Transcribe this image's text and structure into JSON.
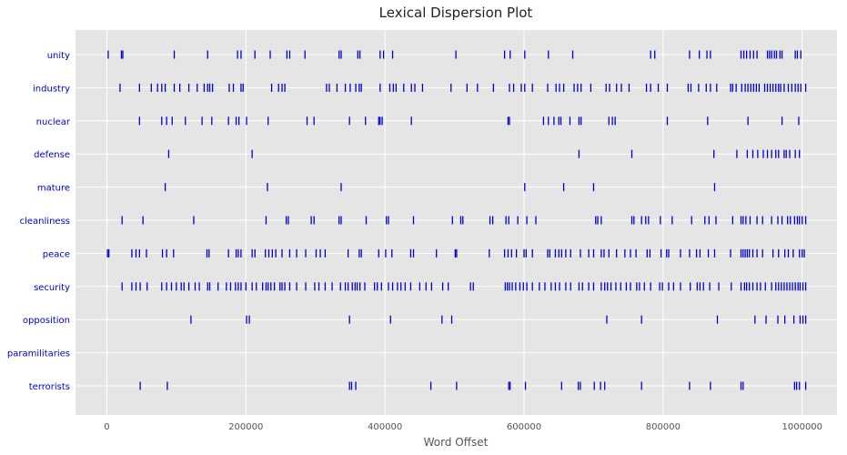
{
  "chart_data": {
    "type": "scatter",
    "title": "Lexical Dispersion Plot",
    "xlabel": "Word Offset",
    "ylabel": "",
    "xlim": [
      -45000,
      1050000
    ],
    "xticks": [
      0,
      200000,
      400000,
      600000,
      800000,
      1000000
    ],
    "grid": true,
    "colors": {
      "background": "#e5e5e5",
      "grid": "#ffffff",
      "marker": "#0000cc",
      "label": "#0000cc"
    },
    "categories": [
      "unity",
      "industry",
      "nuclear",
      "defense",
      "mature",
      "cleanliness",
      "peace",
      "security",
      "opposition",
      "paramilitaries",
      "terrorists"
    ],
    "series": [
      {
        "name": "unity",
        "x": [
          2000,
          21000,
          23000,
          97000,
          145000,
          188000,
          193000,
          213000,
          235000,
          259000,
          263000,
          285000,
          334000,
          337000,
          361000,
          364000,
          393000,
          398000,
          411000,
          502000,
          572000,
          580000,
          601000,
          635000,
          670000,
          782000,
          788000,
          838000,
          852000,
          863000,
          868000,
          912000,
          916000,
          920000,
          925000,
          930000,
          935000,
          950000,
          953000,
          956000,
          960000,
          963000,
          968000,
          971000,
          990000,
          993000,
          998000
        ]
      },
      {
        "name": "industry",
        "x": [
          19000,
          47000,
          64000,
          73000,
          79000,
          84000,
          97000,
          105000,
          118000,
          130000,
          140000,
          145000,
          148000,
          152000,
          176000,
          182000,
          193000,
          196000,
          237000,
          247000,
          252000,
          256000,
          316000,
          320000,
          331000,
          343000,
          350000,
          358000,
          363000,
          366000,
          393000,
          407000,
          412000,
          416000,
          427000,
          438000,
          443000,
          454000,
          495000,
          518000,
          533000,
          556000,
          579000,
          585000,
          596000,
          601000,
          612000,
          634000,
          646000,
          651000,
          657000,
          672000,
          677000,
          682000,
          696000,
          718000,
          723000,
          733000,
          740000,
          751000,
          776000,
          782000,
          793000,
          806000,
          836000,
          840000,
          851000,
          862000,
          868000,
          877000,
          897000,
          900000,
          905000,
          913000,
          918000,
          922000,
          926000,
          930000,
          934000,
          938000,
          946000,
          950000,
          954000,
          958000,
          962000,
          966000,
          969000,
          974000,
          980000,
          985000,
          990000,
          994000,
          998000,
          1005000
        ]
      },
      {
        "name": "nuclear",
        "x": [
          47000,
          79000,
          86000,
          94000,
          113000,
          137000,
          151000,
          175000,
          186000,
          190000,
          201000,
          232000,
          288000,
          298000,
          349000,
          372000,
          391000,
          393000,
          396000,
          438000,
          577000,
          579000,
          628000,
          635000,
          643000,
          650000,
          653000,
          666000,
          679000,
          682000,
          722000,
          727000,
          731000,
          806000,
          864000,
          922000,
          971000,
          995000
        ]
      },
      {
        "name": "defense",
        "x": [
          89000,
          209000,
          679000,
          755000,
          873000,
          906000,
          921000,
          929000,
          936000,
          944000,
          950000,
          956000,
          962000,
          966000,
          974000,
          977000,
          982000,
          990000,
          996000
        ]
      },
      {
        "name": "mature",
        "x": [
          84000,
          231000,
          337000,
          601000,
          657000,
          700000,
          874000
        ]
      },
      {
        "name": "cleanliness",
        "x": [
          22000,
          52000,
          125000,
          229000,
          258000,
          261000,
          294000,
          298000,
          334000,
          337000,
          373000,
          402000,
          405000,
          441000,
          497000,
          509000,
          512000,
          551000,
          555000,
          574000,
          578000,
          591000,
          604000,
          617000,
          703000,
          706000,
          711000,
          755000,
          758000,
          769000,
          775000,
          779000,
          796000,
          813000,
          841000,
          860000,
          866000,
          876000,
          900000,
          912000,
          915000,
          919000,
          925000,
          935000,
          943000,
          956000,
          965000,
          971000,
          979000,
          983000,
          989000,
          993000,
          996000,
          1000000,
          1005000
        ]
      },
      {
        "name": "peace",
        "x": [
          1000,
          3000,
          36000,
          42000,
          47000,
          57000,
          80000,
          86000,
          96000,
          144000,
          147000,
          175000,
          186000,
          189000,
          193000,
          209000,
          213000,
          228000,
          233000,
          238000,
          243000,
          252000,
          263000,
          273000,
          286000,
          301000,
          307000,
          314000,
          347000,
          363000,
          366000,
          391000,
          401000,
          410000,
          437000,
          441000,
          474000,
          501000,
          503000,
          550000,
          572000,
          577000,
          582000,
          589000,
          600000,
          603000,
          612000,
          634000,
          637000,
          645000,
          650000,
          654000,
          660000,
          667000,
          681000,
          693000,
          700000,
          711000,
          715000,
          722000,
          733000,
          745000,
          753000,
          761000,
          777000,
          781000,
          797000,
          805000,
          808000,
          825000,
          838000,
          848000,
          853000,
          865000,
          874000,
          897000,
          912000,
          915000,
          918000,
          921000,
          924000,
          929000,
          935000,
          943000,
          958000,
          966000,
          975000,
          980000,
          987000,
          996000,
          1000000,
          1003000
        ]
      },
      {
        "name": "security",
        "x": [
          22000,
          36000,
          42000,
          48000,
          58000,
          79000,
          86000,
          93000,
          100000,
          107000,
          111000,
          118000,
          127000,
          133000,
          145000,
          148000,
          160000,
          172000,
          178000,
          185000,
          189000,
          193000,
          200000,
          209000,
          215000,
          224000,
          229000,
          232000,
          236000,
          241000,
          249000,
          252000,
          256000,
          263000,
          273000,
          286000,
          299000,
          305000,
          314000,
          324000,
          336000,
          343000,
          347000,
          353000,
          357000,
          360000,
          364000,
          371000,
          385000,
          389000,
          395000,
          405000,
          411000,
          418000,
          423000,
          429000,
          437000,
          450000,
          459000,
          467000,
          483000,
          491000,
          523000,
          527000,
          573000,
          576000,
          579000,
          583000,
          588000,
          594000,
          599000,
          604000,
          612000,
          622000,
          630000,
          639000,
          645000,
          651000,
          660000,
          667000,
          679000,
          684000,
          693000,
          700000,
          711000,
          716000,
          720000,
          725000,
          732000,
          739000,
          747000,
          753000,
          762000,
          766000,
          773000,
          782000,
          795000,
          799000,
          808000,
          815000,
          825000,
          839000,
          849000,
          853000,
          858000,
          867000,
          880000,
          898000,
          912000,
          917000,
          920000,
          924000,
          929000,
          935000,
          940000,
          947000,
          956000,
          962000,
          966000,
          970000,
          974000,
          978000,
          982000,
          986000,
          990000,
          994000,
          997000,
          1001000,
          1005000
        ]
      },
      {
        "name": "opposition",
        "x": [
          121000,
          201000,
          205000,
          349000,
          408000,
          482000,
          496000,
          719000,
          769000,
          878000,
          932000,
          948000,
          965000,
          975000,
          988000,
          997000,
          1001000,
          1005000
        ]
      },
      {
        "name": "paramilitaries",
        "x": []
      },
      {
        "name": "terrorists",
        "x": [
          48000,
          87000,
          349000,
          352000,
          358000,
          466000,
          503000,
          578000,
          580000,
          602000,
          654000,
          678000,
          681000,
          701000,
          710000,
          716000,
          769000,
          838000,
          868000,
          912000,
          915000,
          989000,
          992000,
          996000,
          1005000
        ]
      }
    ]
  }
}
